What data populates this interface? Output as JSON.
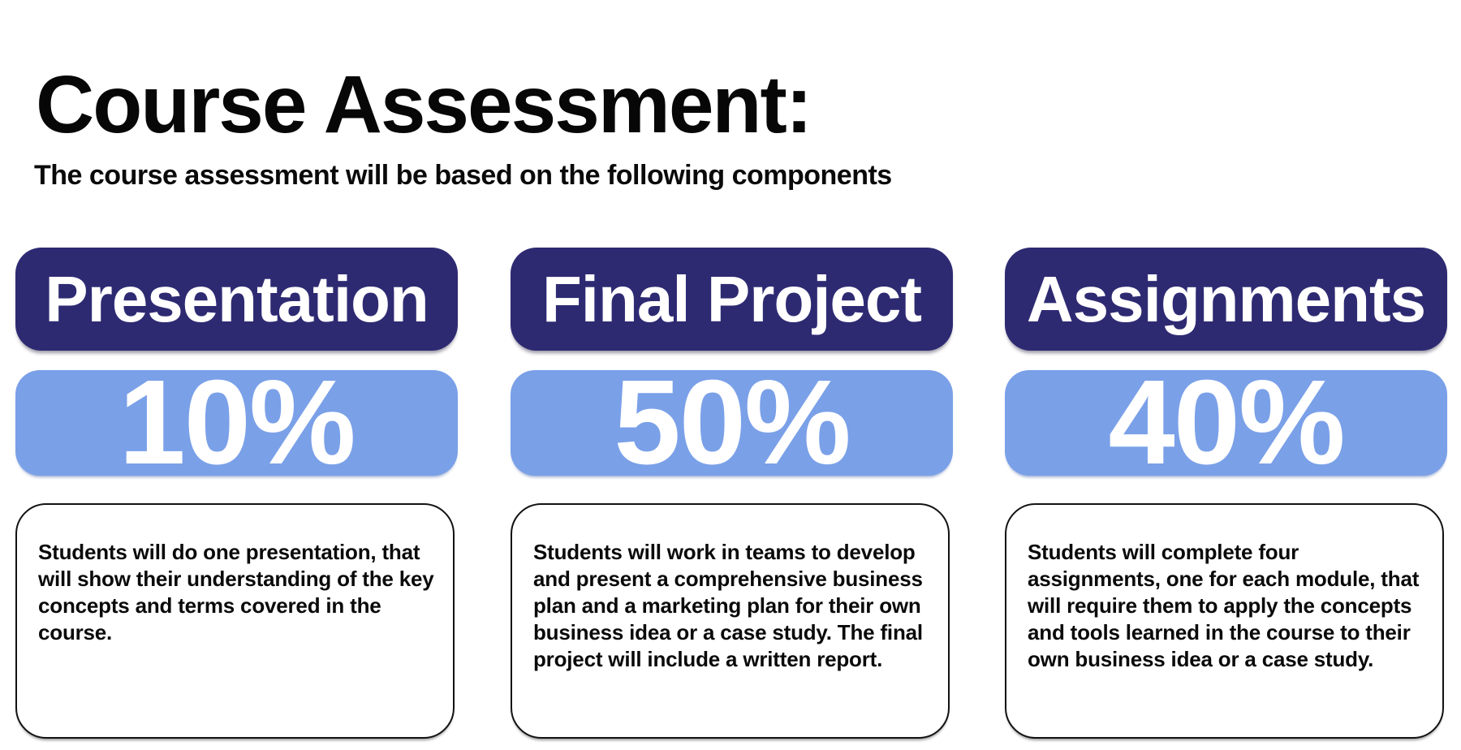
{
  "page": {
    "title": "Course Assessment:",
    "subtitle": "The course assessment will be based on the following components"
  },
  "colors": {
    "background": "#FFFFFF",
    "component_name_pill": "#2E2A72",
    "component_weight_pill": "#7AA0E8",
    "pill_text": "#FFFFFF",
    "body_text": "#0A0A0A",
    "description_border": "#131313"
  },
  "components": [
    {
      "name": "Presentation",
      "weight": "10%",
      "description": "Students will do one presentation, that will show their understanding of the key concepts and terms covered in the course."
    },
    {
      "name": "Final Project",
      "weight": "50%",
      "description": "Students will work in teams to develop and present a comprehensive business plan and a marketing plan for their own business idea or a case study. The final project will include a written report."
    },
    {
      "name": "Assignments",
      "weight": "40%",
      "description": "Students will complete four assignments, one for each module, that will require them to apply the concepts and tools learned in the course to their own business idea or a case study."
    }
  ]
}
